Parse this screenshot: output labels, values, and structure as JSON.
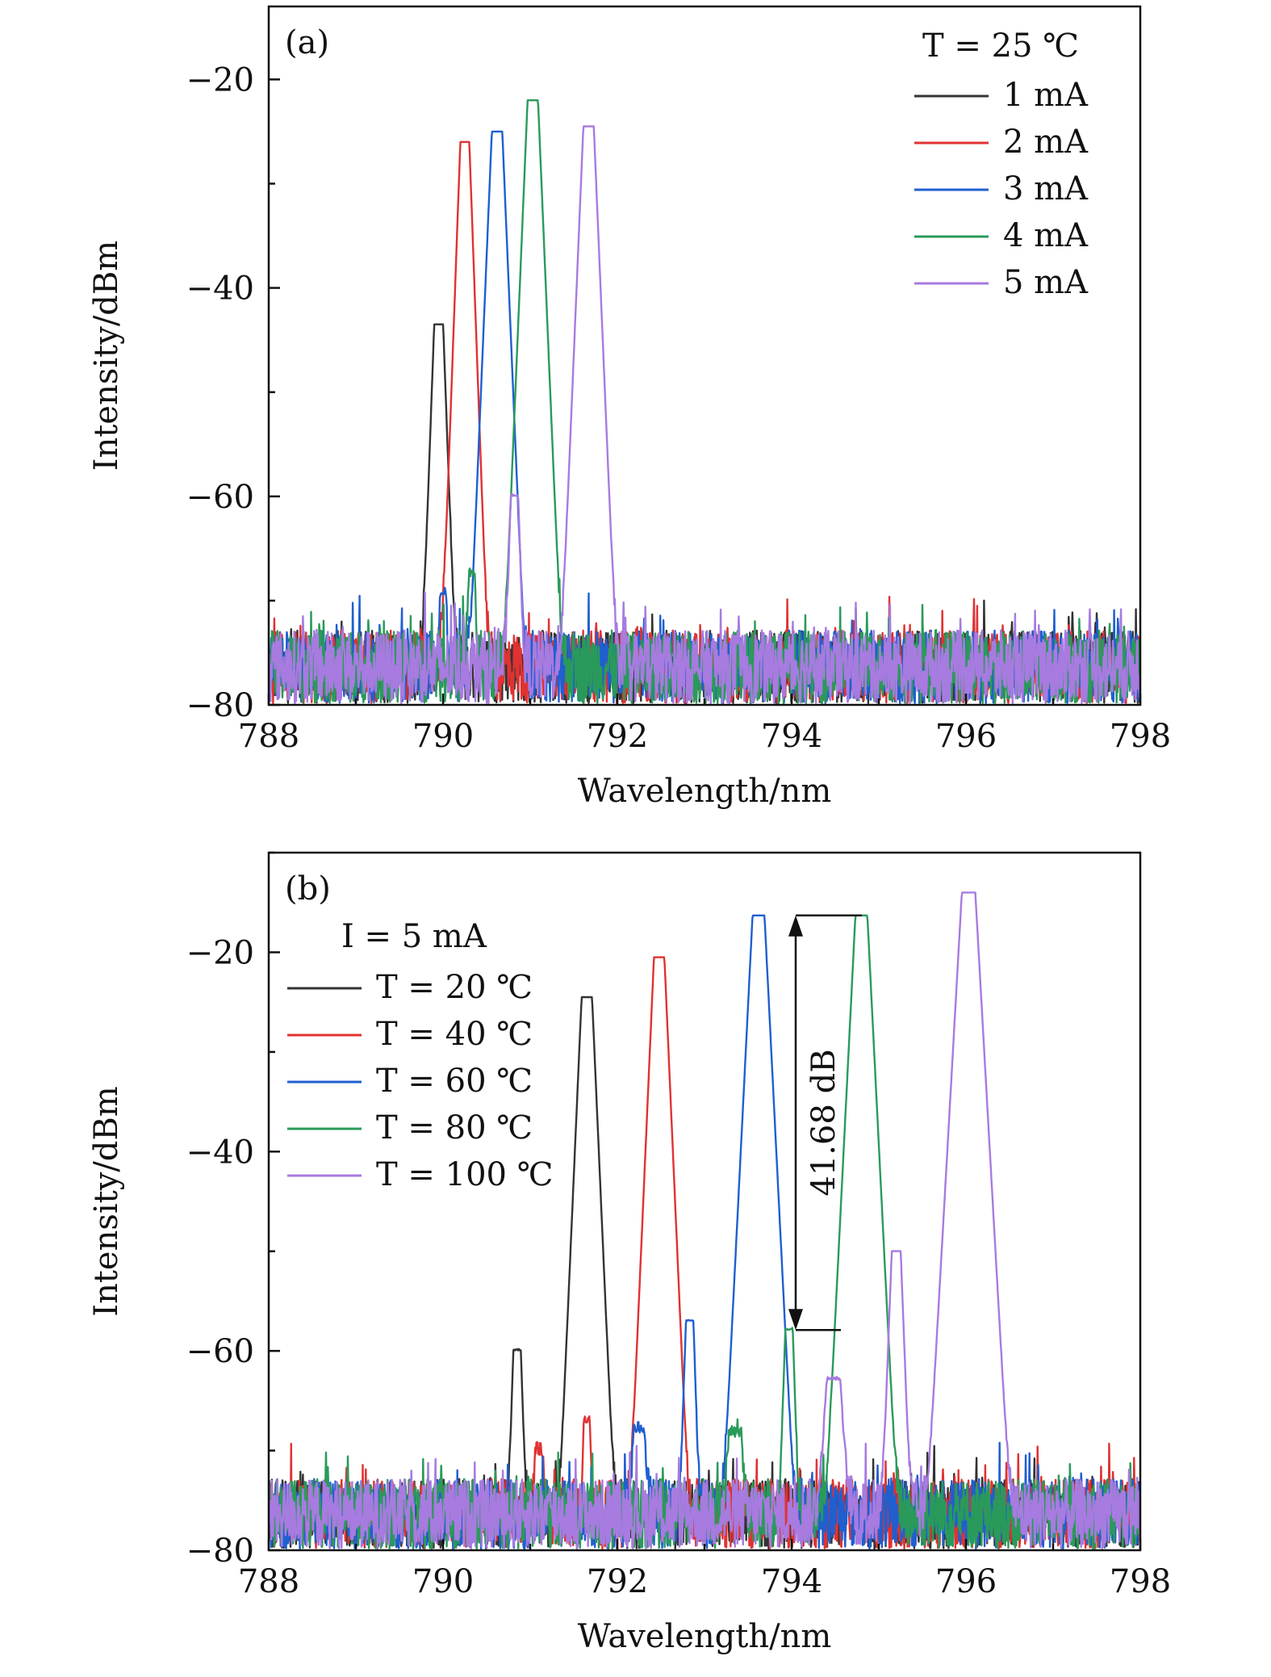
{
  "chart_data": [
    {
      "type": "line",
      "panel_label": "(a)",
      "xlabel": "Wavelength/nm",
      "ylabel": "Intensity/dBm",
      "xlim": [
        788,
        798
      ],
      "ylim": [
        -80,
        -13
      ],
      "xticks": [
        788,
        790,
        792,
        794,
        796,
        798
      ],
      "xtick_labels": [
        "788",
        "790",
        "792",
        "794",
        "796",
        "798"
      ],
      "yticks": [
        -20,
        -40,
        -60,
        -80
      ],
      "ytick_labels": [
        "−20",
        "−40",
        "−60",
        "−80"
      ],
      "grid": false,
      "legend_title": "T = 25 ℃",
      "legend_position": "top-right",
      "noise_floor_dBm": -76,
      "series": [
        {
          "name": "1 mA",
          "color": "#333333",
          "peaks": [
            {
              "x": 789.95,
              "y": -43.5,
              "width": 0.06
            }
          ]
        },
        {
          "name": "2 mA",
          "color": "#e03232",
          "peaks": [
            {
              "x": 790.25,
              "y": -26,
              "width": 0.06
            },
            {
              "x": 790.05,
              "y": -73,
              "width": 0.05
            }
          ]
        },
        {
          "name": "3 mA",
          "color": "#1f5fd0",
          "peaks": [
            {
              "x": 790.62,
              "y": -25,
              "width": 0.07
            },
            {
              "x": 790.0,
              "y": -70,
              "width": 0.04
            }
          ]
        },
        {
          "name": "4 mA",
          "color": "#2a9a5a",
          "peaks": [
            {
              "x": 791.03,
              "y": -22,
              "width": 0.07
            },
            {
              "x": 790.33,
              "y": -68,
              "width": 0.04
            }
          ]
        },
        {
          "name": "5 mA",
          "color": "#a77be0",
          "peaks": [
            {
              "x": 791.67,
              "y": -24.5,
              "width": 0.07
            },
            {
              "x": 790.82,
              "y": -60,
              "width": 0.05
            }
          ]
        }
      ]
    },
    {
      "type": "line",
      "panel_label": "(b)",
      "xlabel": "Wavelength/nm",
      "ylabel": "Intensity/dBm",
      "xlim": [
        788,
        798
      ],
      "ylim": [
        -80,
        -10
      ],
      "xticks": [
        788,
        790,
        792,
        794,
        796,
        798
      ],
      "xtick_labels": [
        "788",
        "790",
        "792",
        "794",
        "796",
        "798"
      ],
      "yticks": [
        -20,
        -40,
        -60,
        -80
      ],
      "ytick_labels": [
        "−20",
        "−40",
        "−60",
        "−80"
      ],
      "grid": false,
      "legend_title": "I = 5 mA",
      "legend_position": "top-left",
      "noise_floor_dBm": -76,
      "annotation": {
        "text": "41.68 dB",
        "x": 794.0,
        "y_top": -16.3,
        "y_bottom": -57.9
      },
      "series": [
        {
          "name": "T = 20 ℃",
          "color": "#333333",
          "peaks": [
            {
              "x": 791.65,
              "y": -24.5,
              "width": 0.07
            },
            {
              "x": 790.85,
              "y": -60,
              "width": 0.05
            }
          ]
        },
        {
          "name": "T = 40 ℃",
          "color": "#e03232",
          "peaks": [
            {
              "x": 792.48,
              "y": -20.5,
              "width": 0.07
            },
            {
              "x": 791.65,
              "y": -67.5,
              "width": 0.04
            },
            {
              "x": 791.1,
              "y": -71.5,
              "width": 0.05
            }
          ]
        },
        {
          "name": "T = 60 ℃",
          "color": "#1f5fd0",
          "peaks": [
            {
              "x": 793.62,
              "y": -16.3,
              "width": 0.08
            },
            {
              "x": 792.83,
              "y": -57,
              "width": 0.05
            },
            {
              "x": 792.25,
              "y": -68.5,
              "width": 0.07
            }
          ]
        },
        {
          "name": "T = 80 ℃",
          "color": "#2a9a5a",
          "peaks": [
            {
              "x": 794.8,
              "y": -16.3,
              "width": 0.08
            },
            {
              "x": 793.97,
              "y": -57.9,
              "width": 0.05
            },
            {
              "x": 793.35,
              "y": -69,
              "width": 0.08
            }
          ]
        },
        {
          "name": "T = 100 ℃",
          "color": "#a77be0",
          "peaks": [
            {
              "x": 796.03,
              "y": -14,
              "width": 0.09
            },
            {
              "x": 795.2,
              "y": -50,
              "width": 0.06
            },
            {
              "x": 794.48,
              "y": -63,
              "width": 0.09
            }
          ]
        }
      ]
    }
  ]
}
